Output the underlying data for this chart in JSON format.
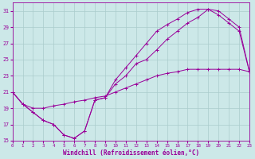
{
  "xlabel": "Windchill (Refroidissement éolien,°C)",
  "bg_color": "#cce8e8",
  "grid_color": "#aacccc",
  "line_color": "#990099",
  "marker": "+",
  "line1_hours": [
    0,
    1,
    2,
    3,
    4,
    5,
    6,
    7,
    8,
    9,
    10,
    11,
    12,
    13,
    14,
    15,
    16,
    17,
    18,
    19,
    20,
    21,
    22,
    23
  ],
  "line1_temps": [
    21.0,
    19.5,
    18.5,
    17.5,
    17.0,
    15.7,
    15.3,
    16.2,
    20.0,
    20.3,
    22.0,
    23.0,
    24.5,
    25.0,
    26.2,
    27.5,
    28.5,
    29.5,
    30.2,
    31.2,
    31.0,
    30.0,
    29.0,
    23.5
  ],
  "line2_hours": [
    0,
    1,
    2,
    3,
    4,
    5,
    6,
    7,
    8,
    9,
    10,
    11,
    12,
    13,
    14,
    15,
    16,
    17,
    18,
    19,
    20,
    21,
    22,
    23
  ],
  "line2_temps": [
    21.0,
    19.5,
    18.5,
    17.5,
    17.0,
    15.7,
    15.3,
    16.2,
    20.0,
    20.3,
    22.5,
    24.0,
    25.5,
    27.0,
    28.5,
    29.3,
    30.0,
    30.8,
    31.2,
    31.2,
    30.5,
    29.5,
    28.5,
    23.5
  ],
  "line3_hours": [
    0,
    1,
    2,
    3,
    4,
    5,
    6,
    7,
    8,
    9,
    10,
    11,
    12,
    13,
    14,
    15,
    16,
    17,
    18,
    19,
    20,
    21,
    22,
    23
  ],
  "line3_temps": [
    21.0,
    19.5,
    19.0,
    19.0,
    19.3,
    19.5,
    19.8,
    20.0,
    20.3,
    20.5,
    21.0,
    21.5,
    22.0,
    22.5,
    23.0,
    23.3,
    23.5,
    23.8,
    23.8,
    23.8,
    23.8,
    23.8,
    23.8,
    23.5
  ],
  "xlim": [
    0,
    23
  ],
  "ylim": [
    15,
    32
  ],
  "yticks": [
    15,
    17,
    19,
    21,
    23,
    25,
    27,
    29,
    31
  ],
  "xticks": [
    0,
    1,
    2,
    3,
    4,
    5,
    6,
    7,
    8,
    9,
    10,
    11,
    12,
    13,
    14,
    15,
    16,
    17,
    18,
    19,
    20,
    21,
    22,
    23
  ],
  "figw": 3.2,
  "figh": 2.0,
  "dpi": 100
}
